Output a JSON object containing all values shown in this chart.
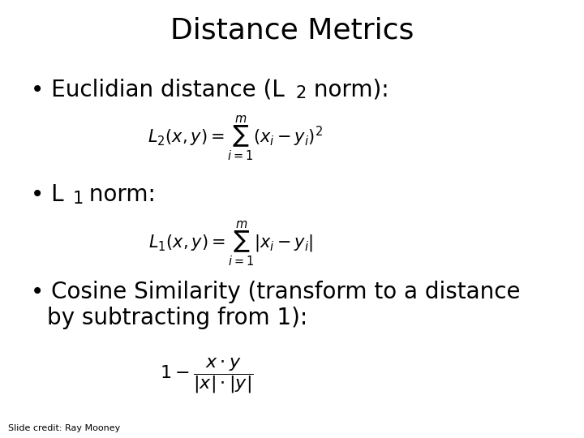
{
  "title": "Distance Metrics",
  "title_fontsize": 26,
  "background_color": "#ffffff",
  "text_color": "#000000",
  "bullet_fontsize": 20,
  "formula_fontsize": 15,
  "formula3_fontsize": 16,
  "credit_text": "Slide credit: Ray Mooney",
  "credit_fontsize": 8,
  "formula1": "$L_2(x, y) = \\sum_{i=1}^{m}(x_i - y_i)^2$",
  "formula2": "$L_1(x, y) = \\sum_{i=1}^{m}|x_i - y_i|$",
  "formula3": "$1 - \\dfrac{x \\cdot y}{|x| \\cdot |y|}$"
}
